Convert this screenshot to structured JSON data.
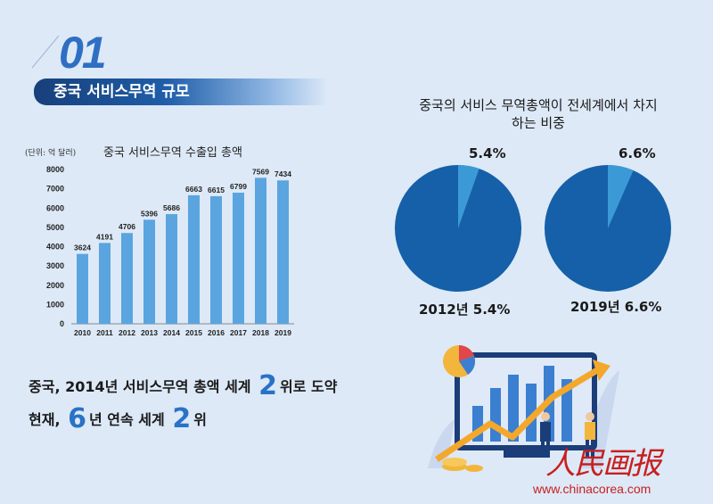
{
  "section": {
    "number": "01",
    "title": "중국 서비스무역 규모"
  },
  "bar_chart": {
    "unit": "(단위: 억 달러)"
  },
  "summary": {
    "line1_a": "중국, 2014년 서비스무역 총액 세계",
    "line1_num": "2",
    "line1_b": "위로 도약",
    "line2_a": "현재,",
    "line2_num1": "6",
    "line2_b": "년 연속 세계",
    "line2_num2": "2",
    "line2_c": "위"
  },
  "pie_section": {
    "title": "중국의 서비스 무역총액이 전세계에서 차지하는 비중"
  },
  "pies": [
    {
      "pct_label": "5.4%",
      "caption": "2012년  5.4%"
    },
    {
      "pct_label": "6.6%",
      "caption": "2019년  6.6%"
    }
  ],
  "watermark": {
    "logo_text": "人民画报",
    "url": "www.chinacorea.com"
  },
  "colors": {
    "bar": "#5aa5df",
    "pie_main": "#1560a8",
    "pie_slice": "#3b9ad6",
    "accent": "#2a72c5"
  },
  "chart_data": [
    {
      "type": "bar",
      "title": "중국 서비스무역 수출입 총액",
      "xlabel": "",
      "ylabel": "",
      "categories": [
        "2010",
        "2011",
        "2012",
        "2013",
        "2014",
        "2015",
        "2016",
        "2017",
        "2018",
        "2019"
      ],
      "values": [
        3624,
        4191,
        4706,
        5396,
        5686,
        6663,
        6615,
        6799,
        7569,
        7434
      ],
      "data_labels": [
        "3624",
        "4191",
        "4706",
        "5396",
        "5686",
        "6663",
        "6615",
        "6799",
        "7569",
        "7434"
      ],
      "y_ticks": [
        "0",
        "1000",
        "2000",
        "3000",
        "4000",
        "5000",
        "6000",
        "7000",
        "8000"
      ],
      "ylim": [
        0,
        8000
      ],
      "grid": false,
      "legend": "none"
    },
    {
      "type": "pie",
      "title": "2012년",
      "values": [
        5.4,
        94.6
      ],
      "highlight": 0
    },
    {
      "type": "pie",
      "title": "2019년",
      "values": [
        6.6,
        93.4
      ],
      "highlight": 0
    }
  ]
}
